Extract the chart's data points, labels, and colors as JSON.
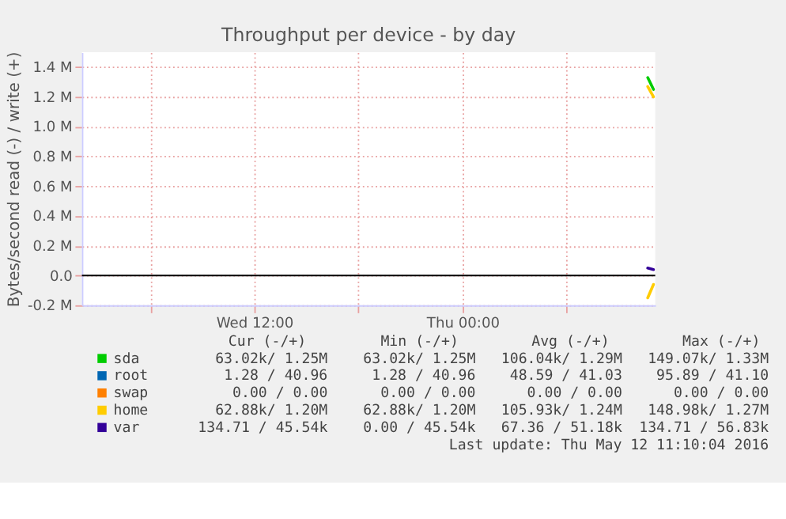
{
  "chart_data": {
    "type": "line",
    "title": "Throughput per device - by day",
    "ylabel": "Bytes/second read (-) / write (+)",
    "xlim": [
      "2016-05-11T02:04",
      "2016-05-12T11:06"
    ],
    "xticks": [
      {
        "value": "2016-05-11T06:00",
        "label": null
      },
      {
        "value": "2016-05-11T12:00",
        "label": "Wed 12:00"
      },
      {
        "value": "2016-05-11T18:00",
        "label": null
      },
      {
        "value": "2016-05-12T00:00",
        "label": "Thu 00:00"
      },
      {
        "value": "2016-05-12T06:00",
        "label": null
      }
    ],
    "ylim": [
      -200000,
      1500000
    ],
    "yticks": [
      {
        "value": -200000,
        "label": "-0.2 M"
      },
      {
        "value": 0,
        "label": "0.0"
      },
      {
        "value": 200000,
        "label": "0.2 M"
      },
      {
        "value": 400000,
        "label": "0.4 M"
      },
      {
        "value": 600000,
        "label": "0.6 M"
      },
      {
        "value": 800000,
        "label": "0.8 M"
      },
      {
        "value": 1000000,
        "label": "1.0 M"
      },
      {
        "value": 1200000,
        "label": "1.2 M"
      },
      {
        "value": 1400000,
        "label": "1.4 M"
      }
    ],
    "grid": true,
    "legend": "bottom",
    "line_style": "solid",
    "ref_lines": [
      {
        "axis": "y",
        "value": 0,
        "label": null,
        "color": "#000000"
      }
    ],
    "series": [
      {
        "name": "sda",
        "color": "#00cc00",
        "x": [
          "2016-05-12T10:40",
          "2016-05-12T11:00"
        ],
        "values": [
          1330000,
          1250000
        ]
      },
      {
        "name": "root",
        "color": "#0066b3"
      },
      {
        "name": "swap",
        "color": "#ff8000"
      },
      {
        "name": "home",
        "color": "#ffcc00",
        "x": [
          "2016-05-12T10:40",
          "2016-05-12T11:00"
        ],
        "values": [
          1270000,
          1200000
        ]
      },
      {
        "name": "var",
        "color": "#330099",
        "x": [
          "2016-05-12T10:40",
          "2016-05-12T11:00"
        ],
        "values": [
          50000,
          40000
        ]
      },
      {
        "color": "#ffcc00",
        "x": [
          "2016-05-12T10:40",
          "2016-05-12T11:00"
        ],
        "values": [
          -150000,
          -60000
        ]
      }
    ],
    "annotations": [
      "Cur (-/+)",
      "Min (-/+)",
      "Avg (-/+)",
      "Max (-/+)",
      "63.02k/  1.25M",
      "63.02k/  1.25M",
      "106.04k/  1.29M",
      "149.07k/  1.33M",
      "1.28 / 40.96",
      "1.28 / 40.96",
      "48.59 / 41.03",
      "95.89 / 41.10",
      "0.00 /  0.00",
      "0.00 /  0.00",
      "0.00 /  0.00",
      "0.00 /  0.00",
      "62.88k/  1.20M",
      "62.88k/  1.20M",
      "105.93k/  1.24M",
      "148.98k/  1.27M",
      "134.71 / 45.54k",
      "0.00 / 45.54k",
      "67.36 / 51.18k",
      "134.71 / 56.83k",
      "Last update:  Thu May 12 11:10:04 2016"
    ]
  }
}
